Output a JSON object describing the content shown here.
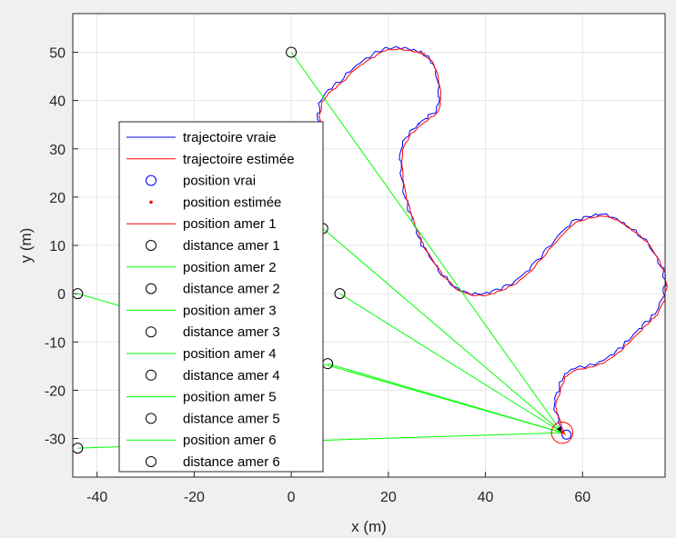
{
  "chart_data": {
    "type": "line",
    "xlabel": "x (m)",
    "ylabel": "y (m)",
    "xlim": [
      -45,
      77
    ],
    "ylim": [
      -38,
      58
    ],
    "xticks": [
      -40,
      -20,
      0,
      20,
      40,
      60
    ],
    "yticks": [
      -30,
      -20,
      -10,
      0,
      10,
      20,
      30,
      40,
      50
    ],
    "xtick_labels": [
      "-40",
      "-20",
      "0",
      "20",
      "40",
      "60"
    ],
    "ytick_labels": [
      "-30",
      "-20",
      "-10",
      "0",
      "10",
      "20",
      "30",
      "40",
      "50"
    ],
    "grid": true,
    "legend_position": "left",
    "legend": [
      {
        "label": "trajectoire vraie",
        "kind": "line",
        "color": "#0000ff"
      },
      {
        "label": "trajectoire estimée",
        "kind": "line",
        "color": "#ff0000"
      },
      {
        "label": "position vrai",
        "kind": "circle",
        "color": "#0000ff"
      },
      {
        "label": "position estimée",
        "kind": "dot",
        "color": "#ff0000"
      },
      {
        "label": "position amer 1",
        "kind": "line",
        "color": "#ff0000"
      },
      {
        "label": "distance amer 1",
        "kind": "circle",
        "color": "#000000"
      },
      {
        "label": "position amer 2",
        "kind": "line",
        "color": "#00ff00"
      },
      {
        "label": "distance amer 2",
        "kind": "circle",
        "color": "#000000"
      },
      {
        "label": "position amer 3",
        "kind": "line",
        "color": "#00ff00"
      },
      {
        "label": "distance amer 3",
        "kind": "circle",
        "color": "#000000"
      },
      {
        "label": "position amer 4",
        "kind": "line",
        "color": "#00ff00"
      },
      {
        "label": "distance amer 4",
        "kind": "circle",
        "color": "#000000"
      },
      {
        "label": "position amer 5",
        "kind": "line",
        "color": "#00ff00"
      },
      {
        "label": "distance amer 5",
        "kind": "circle",
        "color": "#000000"
      },
      {
        "label": "position amer 6",
        "kind": "line",
        "color": "#00ff00"
      },
      {
        "label": "distance amer 6",
        "kind": "circle",
        "color": "#000000"
      }
    ],
    "trajectory": {
      "x": [
        56,
        55,
        54,
        55,
        56,
        58,
        61,
        64,
        67,
        69,
        71,
        73,
        75,
        76.5,
        77,
        76.5,
        75,
        73,
        70,
        67,
        64,
        61,
        58,
        55,
        52,
        49,
        46,
        43,
        40,
        37,
        34,
        31,
        29,
        27,
        26,
        25,
        24,
        23,
        22.5,
        22.5,
        24,
        26,
        28,
        30,
        30.5,
        30,
        29,
        27,
        25,
        22,
        19,
        16,
        13,
        10,
        7.5,
        6,
        5.5,
        6,
        6
      ],
      "y": [
        -29,
        -26,
        -23,
        -20,
        -17,
        -15.5,
        -15,
        -14,
        -12,
        -10,
        -8,
        -6,
        -4,
        -1,
        2,
        5,
        8,
        11,
        13.5,
        15.5,
        16.5,
        16,
        15,
        12,
        8.5,
        5,
        2.5,
        1,
        0,
        0,
        1,
        4,
        7,
        10,
        12.5,
        15,
        18,
        22,
        26,
        30,
        33,
        35,
        36.5,
        38,
        41,
        45,
        48,
        50,
        50.5,
        51,
        50.8,
        49,
        47,
        44,
        42,
        40,
        37,
        34,
        32
      ],
      "estimated_offset": 0.35
    },
    "true_position": {
      "x": 56.7,
      "y": -29.2,
      "color": "#0000ff"
    },
    "estimated_position": {
      "x": 55.8,
      "y": -28.8,
      "color": "#ff0000"
    },
    "uncertainty_circle_radius": 2.2,
    "landmarks": [
      {
        "name": "amer 1",
        "x": 0,
        "y": 50
      },
      {
        "name": "amer 2",
        "x": -44,
        "y": 0
      },
      {
        "name": "amer 3",
        "x": 10,
        "y": 0
      },
      {
        "name": "amer 4",
        "x": -44,
        "y": -32
      },
      {
        "name": "amer 5",
        "x": 6.5,
        "y": 13.5
      },
      {
        "name": "amer 6",
        "x": 7.5,
        "y": -14.5
      }
    ],
    "sight_line_color": "#00ff00"
  }
}
